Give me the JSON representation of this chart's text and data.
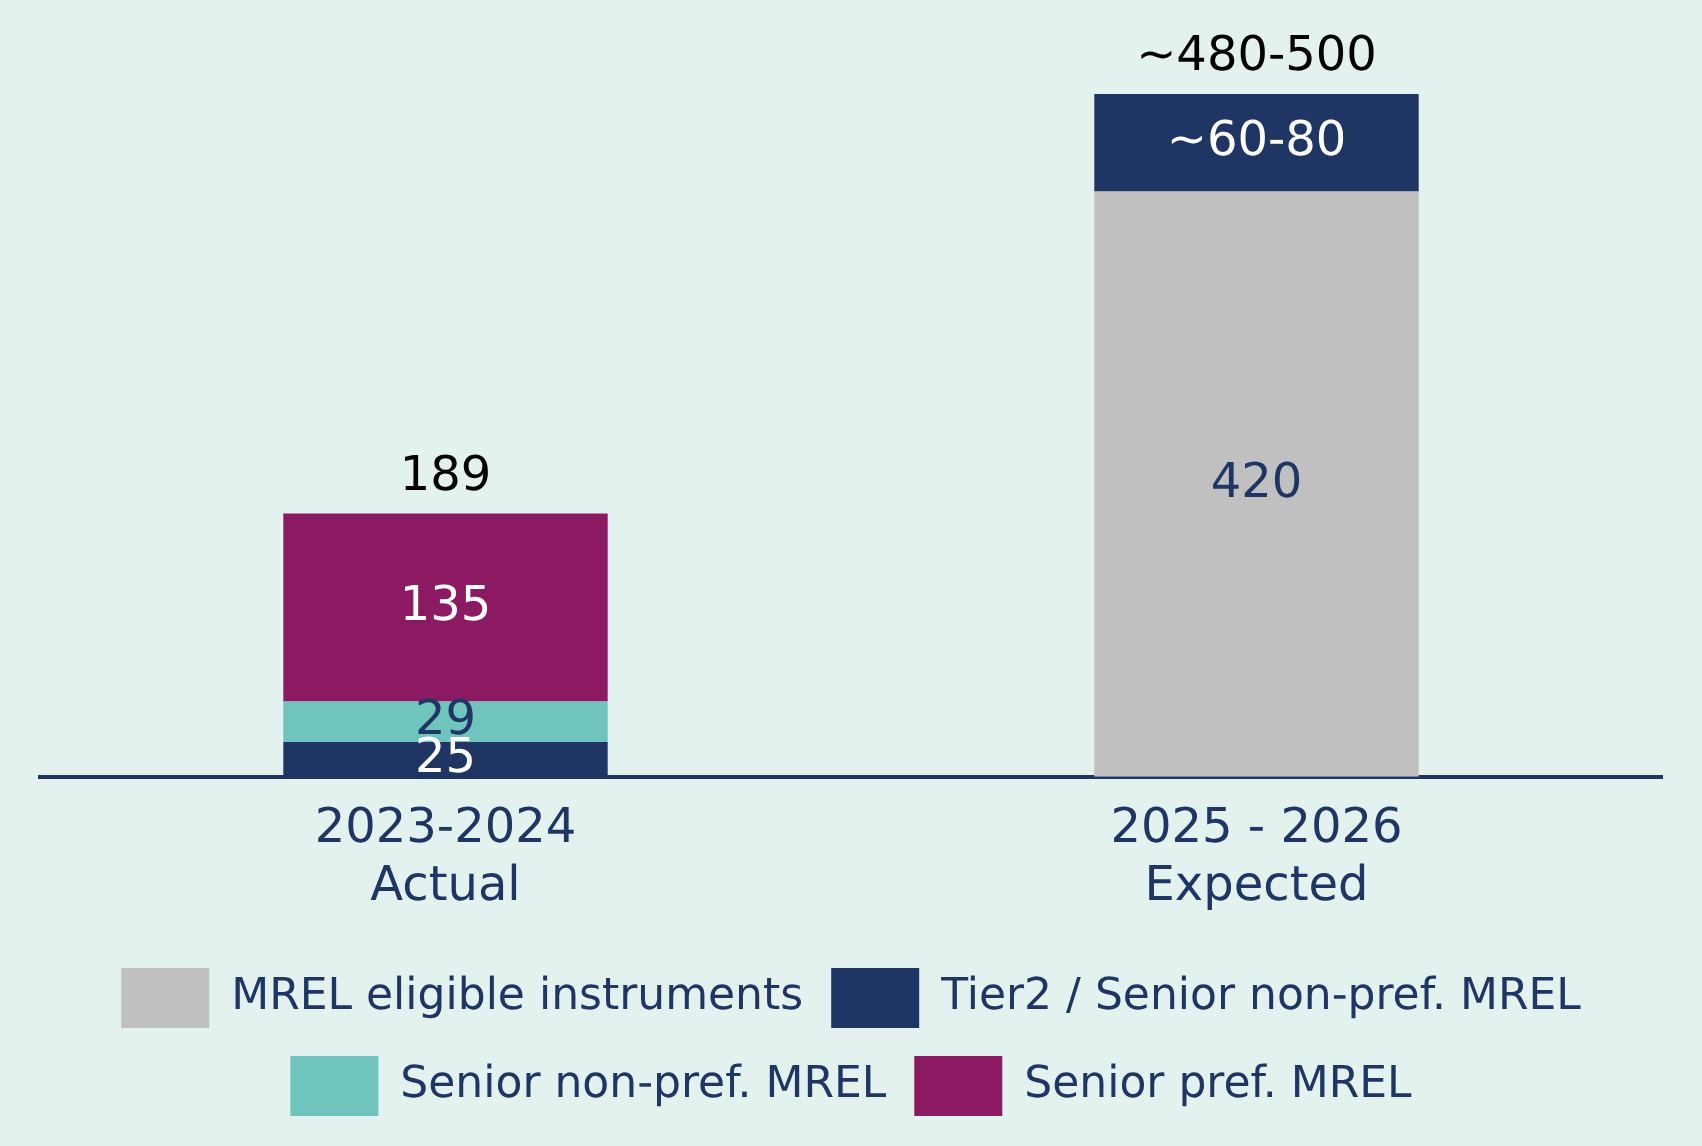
{
  "chart_data": {
    "type": "bar",
    "stacked": true,
    "categories": [
      "2023-2024\nActual",
      "2025 - 2026\nExpected"
    ],
    "series": [
      {
        "name": "MREL eligible instruments",
        "color": "#c0c0c0",
        "values": [
          null,
          420
        ],
        "value_labels": [
          null,
          "420"
        ]
      },
      {
        "name": "Tier2 / Senior non-pref. MREL",
        "color": "#1f3564",
        "values": [
          25,
          70
        ],
        "value_labels": [
          "25",
          "~60-80"
        ]
      },
      {
        "name": "Senior non-pref. MREL",
        "color": "#6fc4bd",
        "values": [
          29,
          null
        ],
        "value_labels": [
          "29",
          null
        ]
      },
      {
        "name": "Senior pref. MREL",
        "color": "#8c1a63",
        "values": [
          135,
          null
        ],
        "value_labels": [
          "135",
          null
        ]
      }
    ],
    "totals": [
      "189",
      "~480-500"
    ],
    "tick_labels": "x",
    "grid": false,
    "legend": "bottom"
  }
}
